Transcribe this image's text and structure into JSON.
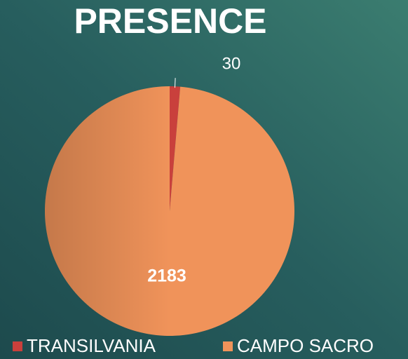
{
  "chart_data": {
    "type": "pie",
    "title": "PRESENCE",
    "categories": [
      "TRANSILVANIA",
      "CAMPO SACRO"
    ],
    "values": [
      30,
      2183
    ],
    "colors": [
      "#c9403c",
      "#f0935a"
    ],
    "legend": "bottom"
  }
}
